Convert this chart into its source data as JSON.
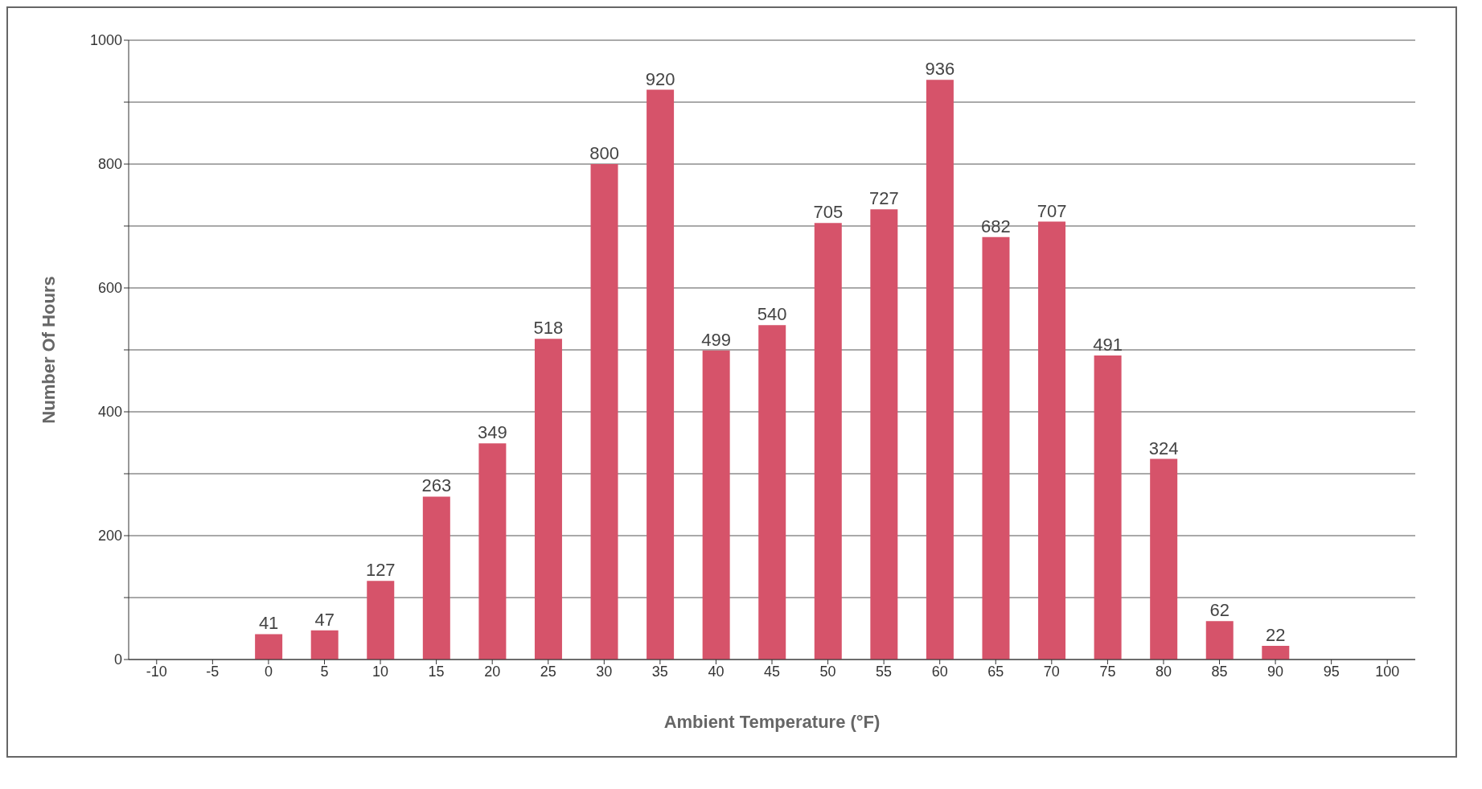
{
  "chart_data": {
    "type": "bar",
    "xlabel": "Ambient Temperature (°F)",
    "ylabel": "Number Of Hours",
    "categories": [
      "-10",
      "-5",
      "0",
      "5",
      "10",
      "15",
      "20",
      "25",
      "30",
      "35",
      "40",
      "45",
      "50",
      "55",
      "60",
      "65",
      "70",
      "75",
      "80",
      "85",
      "90",
      "95",
      "100"
    ],
    "values": [
      0,
      0,
      41,
      47,
      127,
      263,
      349,
      518,
      800,
      920,
      499,
      540,
      705,
      727,
      936,
      682,
      707,
      491,
      324,
      62,
      22,
      0,
      0
    ],
    "value_labels": [
      null,
      null,
      "41",
      "47",
      "127",
      "263",
      "349",
      "518",
      "800",
      "920",
      "499",
      "540",
      "705",
      "727",
      "936",
      "682",
      "707",
      "491",
      "324",
      "62",
      "22",
      null,
      null
    ],
    "color": "#d6536a",
    "ylim": [
      0,
      1000
    ],
    "yticks": [
      0,
      {
        "value": 100,
        "label": null
      },
      200,
      {
        "value": 300,
        "label": null
      },
      400,
      {
        "value": 500,
        "label": null
      },
      600,
      {
        "value": 700,
        "label": null
      },
      800,
      {
        "value": 900,
        "label": null
      },
      1000
    ],
    "grid": "y",
    "legend": false
  }
}
